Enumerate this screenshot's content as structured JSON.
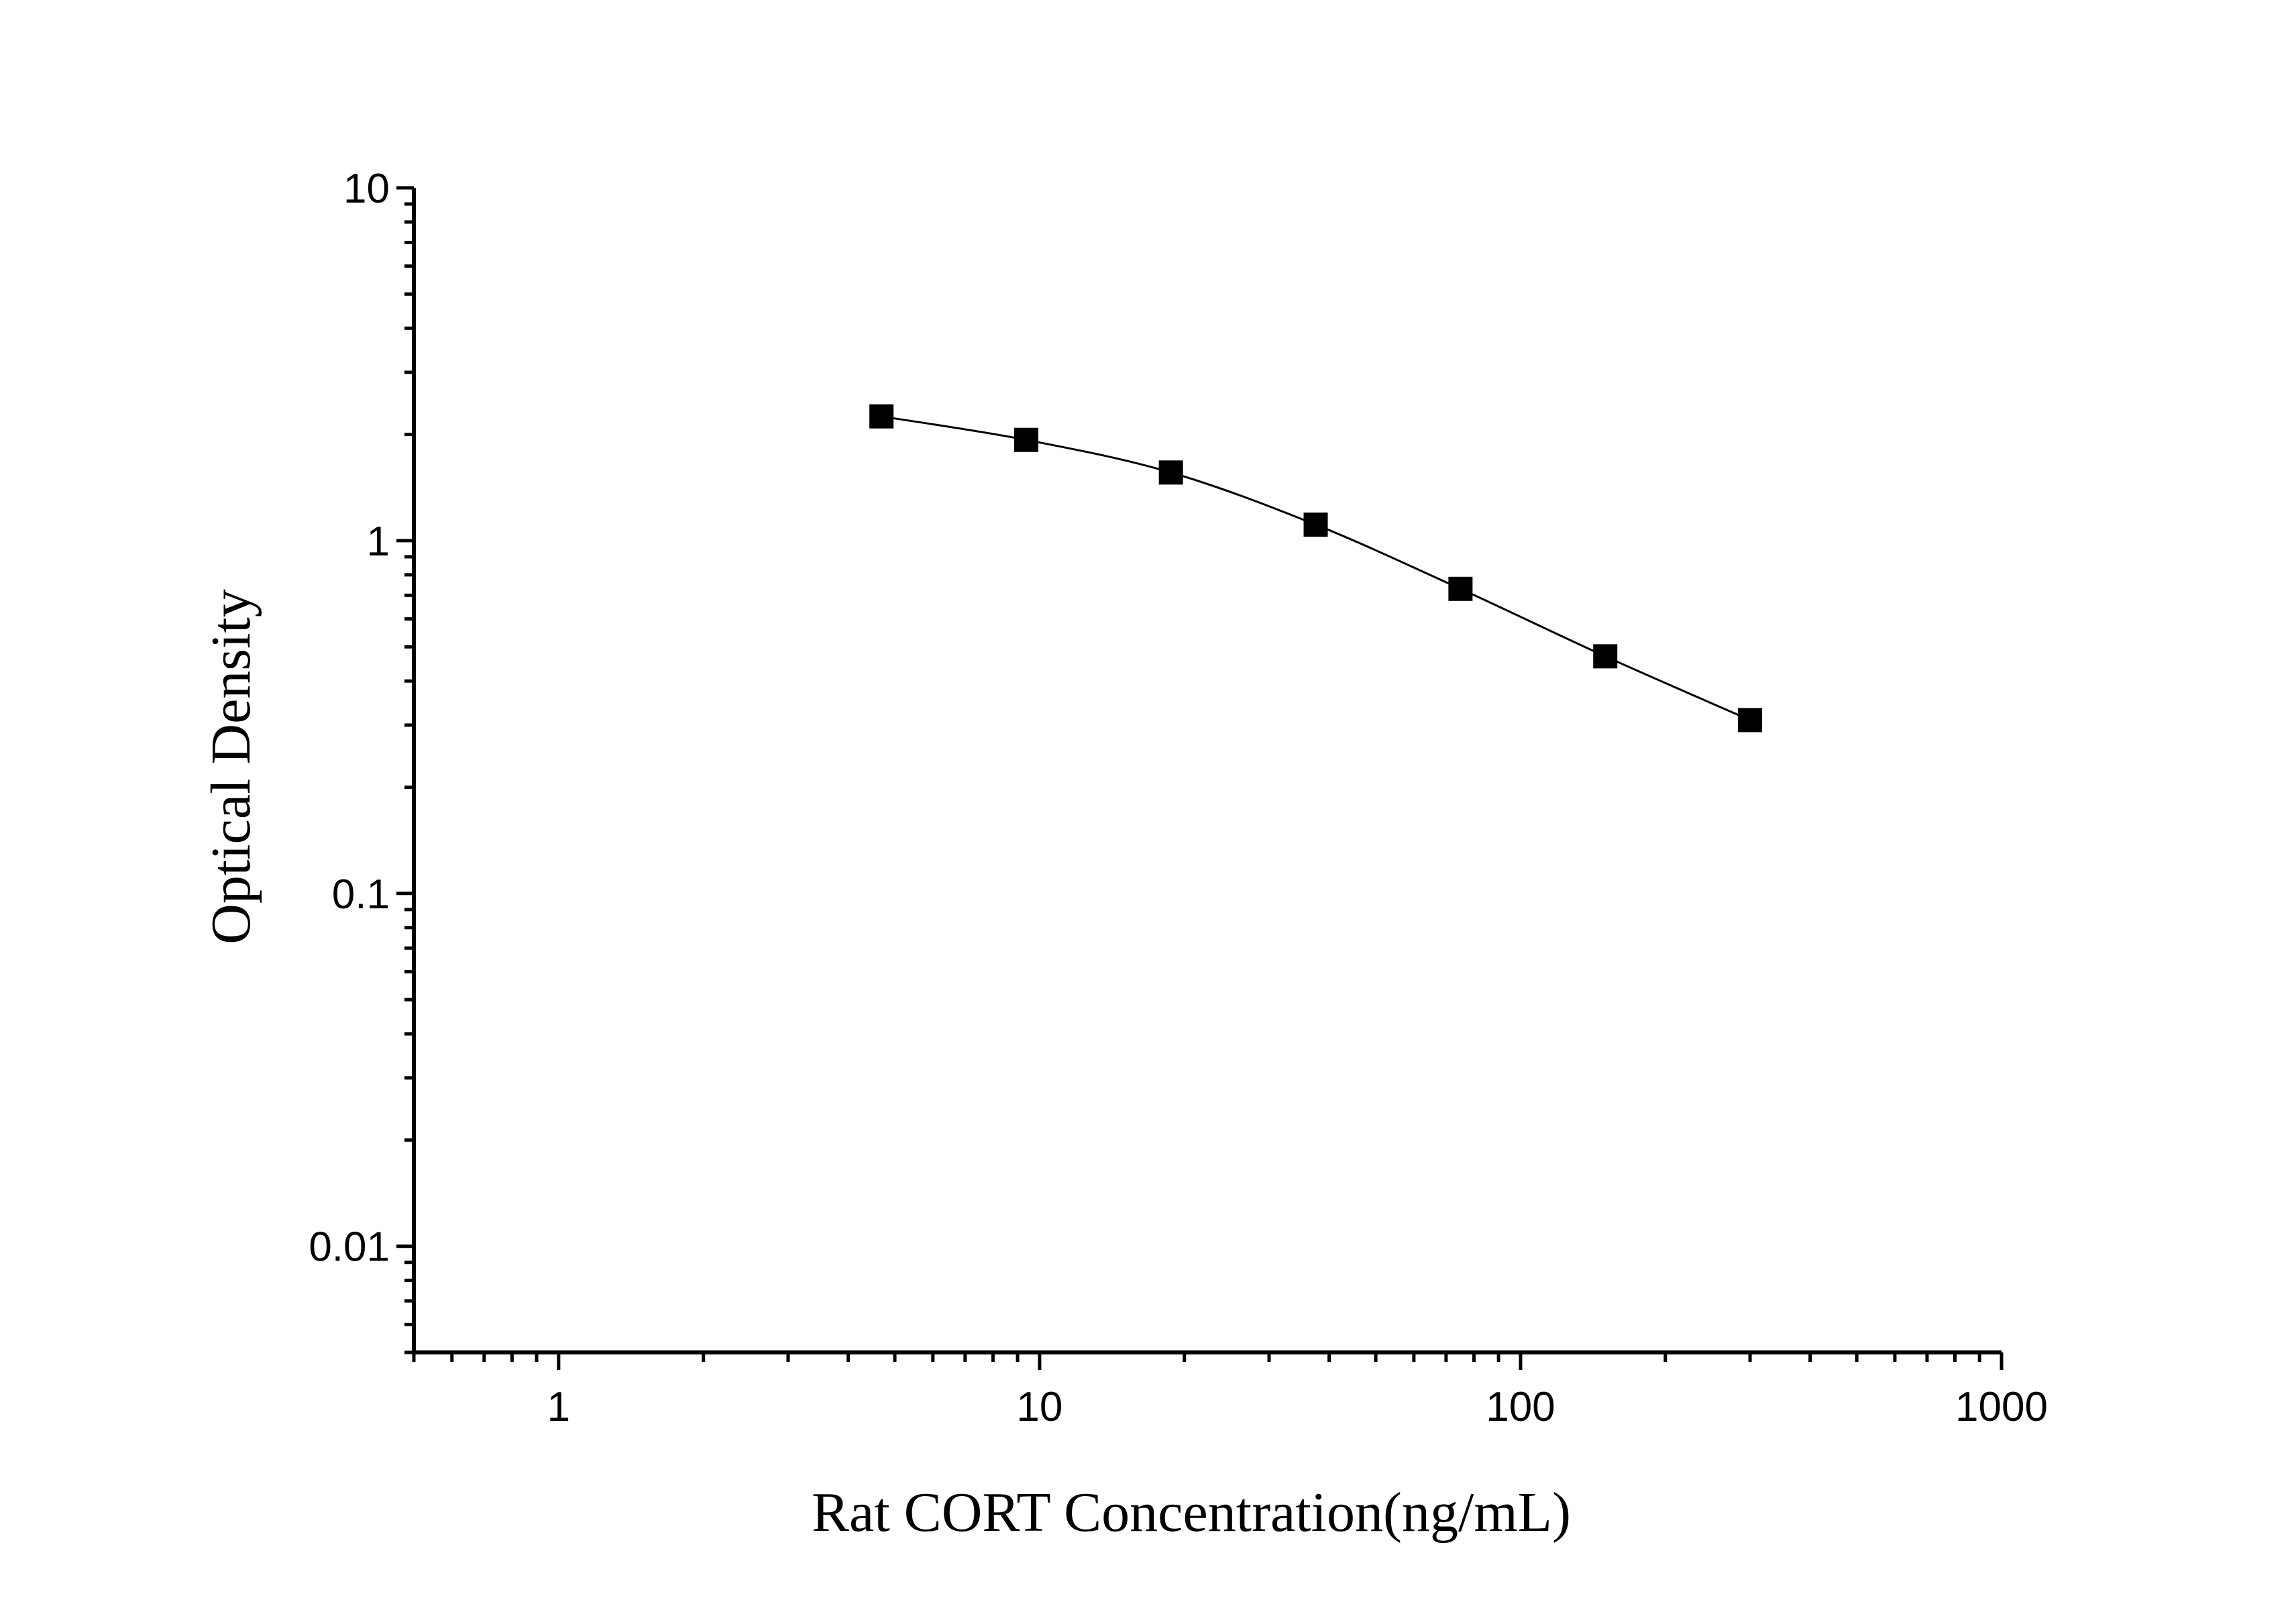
{
  "chart_data": {
    "type": "scatter",
    "title": "",
    "xlabel": "Rat CORT Concentration(ng/mL)",
    "ylabel": "Optical Density",
    "x_scale": "log",
    "y_scale": "log",
    "xlim": [
      0.5,
      1000
    ],
    "ylim": [
      0.005,
      10
    ],
    "x_ticks": [
      1,
      10,
      100,
      1000
    ],
    "x_tick_labels": [
      "1",
      "10",
      "100",
      "1000"
    ],
    "y_ticks": [
      0.01,
      0.1,
      1,
      10
    ],
    "y_tick_labels": [
      "0.01",
      "0.1",
      "1",
      "10"
    ],
    "grid": false,
    "series": [
      {
        "marker": "square",
        "line": "smooth",
        "color": "#000000",
        "x": [
          4.69,
          9.38,
          18.75,
          37.5,
          75,
          150,
          300
        ],
        "y": [
          2.25,
          1.93,
          1.56,
          1.11,
          0.73,
          0.47,
          0.31
        ]
      }
    ]
  }
}
